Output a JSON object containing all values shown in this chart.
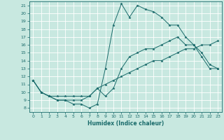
{
  "xlabel": "Humidex (Indice chaleur)",
  "xlim": [
    -0.5,
    23.5
  ],
  "ylim": [
    7.5,
    21.5
  ],
  "xticks": [
    0,
    1,
    2,
    3,
    4,
    5,
    6,
    7,
    8,
    9,
    10,
    11,
    12,
    13,
    14,
    15,
    16,
    17,
    18,
    19,
    20,
    21,
    22,
    23
  ],
  "yticks": [
    8,
    9,
    10,
    11,
    12,
    13,
    14,
    15,
    16,
    17,
    18,
    19,
    20,
    21
  ],
  "background_color": "#c8e8e0",
  "grid_color": "#ffffff",
  "line_color": "#1a6b6b",
  "lines": [
    {
      "x": [
        0,
        1,
        2,
        3,
        4,
        5,
        6,
        7,
        8,
        9,
        10,
        11,
        12,
        13,
        14,
        15,
        16,
        17,
        18,
        19,
        20,
        21,
        22,
        23
      ],
      "y": [
        11.5,
        10,
        9.5,
        9,
        9,
        8.5,
        8.5,
        8,
        8.5,
        13,
        18.5,
        21.2,
        19.5,
        21,
        20.5,
        20.2,
        19.5,
        18.5,
        18.5,
        17,
        16,
        14.5,
        13,
        13
      ]
    },
    {
      "x": [
        0,
        1,
        2,
        3,
        4,
        5,
        6,
        7,
        8,
        9,
        10,
        11,
        12,
        13,
        14,
        15,
        16,
        17,
        18,
        19,
        20,
        21,
        22,
        23
      ],
      "y": [
        11.5,
        10,
        9.5,
        9,
        9,
        9,
        9,
        9.5,
        10.5,
        9.5,
        10.5,
        13,
        14.5,
        15,
        15.5,
        15.5,
        16,
        16.5,
        17,
        16,
        16,
        15,
        13.5,
        13
      ]
    },
    {
      "x": [
        0,
        1,
        2,
        3,
        4,
        5,
        6,
        7,
        8,
        9,
        10,
        11,
        12,
        13,
        14,
        15,
        16,
        17,
        18,
        19,
        20,
        21,
        22,
        23
      ],
      "y": [
        11.5,
        10,
        9.5,
        9.5,
        9.5,
        9.5,
        9.5,
        9.5,
        10.5,
        11.0,
        11.5,
        12,
        12.5,
        13,
        13.5,
        14,
        14,
        14.5,
        15,
        15.5,
        15.5,
        16,
        16,
        16.5
      ]
    }
  ]
}
